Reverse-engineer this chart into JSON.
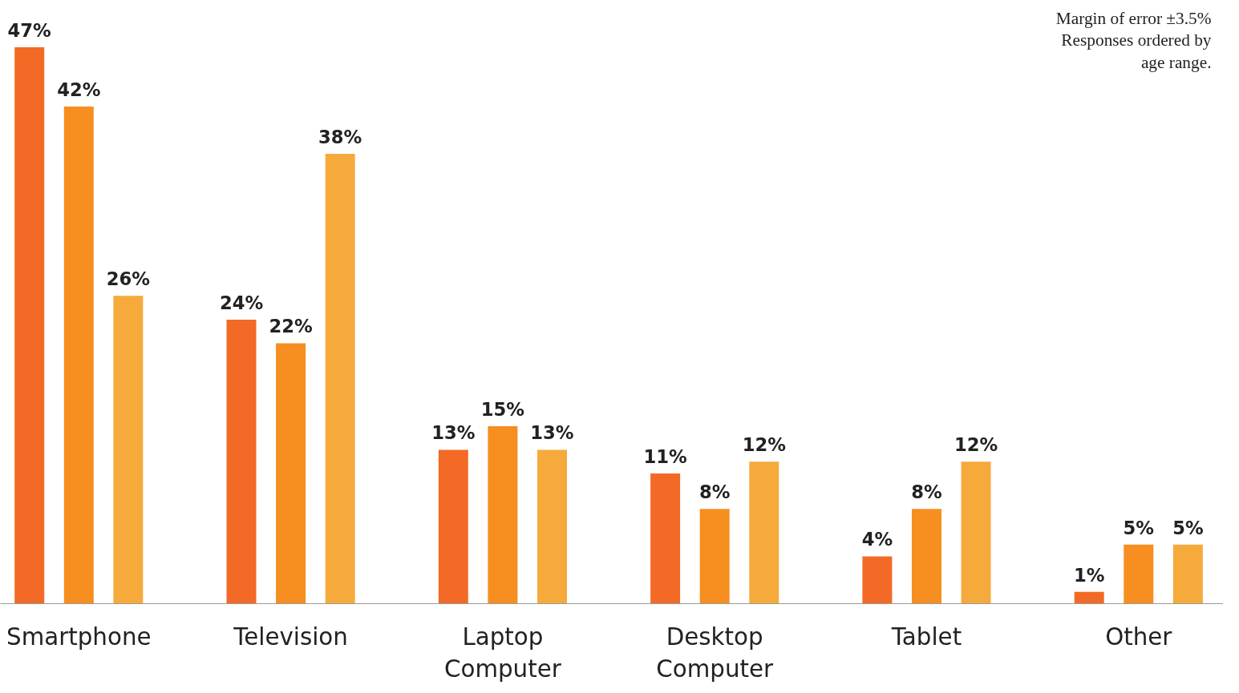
{
  "chart_data": {
    "type": "bar",
    "categories": [
      "Smartphone",
      "Television",
      "Laptop\nComputer",
      "Desktop\nComputer",
      "Tablet",
      "Other"
    ],
    "series": [
      {
        "color": "#f26a26",
        "values": [
          47,
          24,
          13,
          11,
          4,
          1
        ],
        "value_labels": [
          "47%",
          "24%",
          "13%",
          "11%",
          "4%",
          "1%"
        ]
      },
      {
        "color": "#f68e20",
        "values": [
          42,
          22,
          15,
          8,
          8,
          5
        ],
        "value_labels": [
          "42%",
          "22%",
          "15%",
          "8%",
          "8%",
          "5%"
        ]
      },
      {
        "color": "#f6aa3c",
        "values": [
          26,
          38,
          13,
          12,
          12,
          5
        ],
        "value_labels": [
          "26%",
          "38%",
          "13%",
          "12%",
          "12%",
          "5%"
        ]
      }
    ],
    "annotations": [
      "Margin of error ±3.5%\nResponses ordered by\nage range."
    ]
  }
}
